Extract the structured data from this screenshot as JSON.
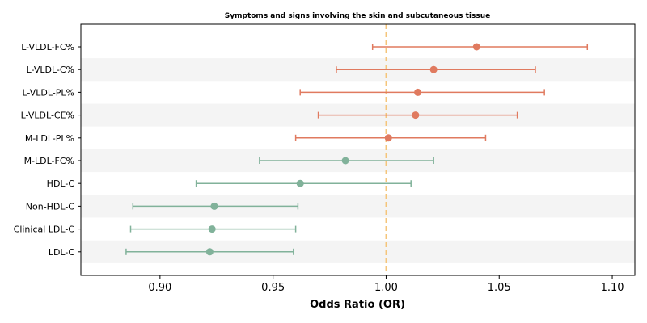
{
  "chart_data": {
    "type": "forest",
    "title": "Symptoms and signs involving the skin and subcutaneous tissue",
    "xlabel": "Odds Ratio (OR)",
    "xlim": [
      0.865,
      1.11
    ],
    "xticks": [
      0.9,
      0.95,
      1.0,
      1.05,
      1.1
    ],
    "xtick_labels": [
      "0.90",
      "0.95",
      "1.00",
      "1.05",
      "1.10"
    ],
    "reference_line": 1.0,
    "reference_color": "#f5c57a",
    "colors": {
      "above_one": "#e07a5f",
      "below_one": "#81b29a",
      "stripe": "#f4f4f4"
    },
    "rows": [
      {
        "label": "L-VLDL-FC%",
        "or": 1.04,
        "lower": 0.994,
        "upper": 1.089
      },
      {
        "label": "L-VLDL-C%",
        "or": 1.021,
        "lower": 0.978,
        "upper": 1.066
      },
      {
        "label": "L-VLDL-PL%",
        "or": 1.014,
        "lower": 0.962,
        "upper": 1.07
      },
      {
        "label": "L-VLDL-CE%",
        "or": 1.013,
        "lower": 0.97,
        "upper": 1.058
      },
      {
        "label": "M-LDL-PL%",
        "or": 1.001,
        "lower": 0.96,
        "upper": 1.044
      },
      {
        "label": "M-LDL-FC%",
        "or": 0.982,
        "lower": 0.944,
        "upper": 1.021
      },
      {
        "label": "HDL-C",
        "or": 0.962,
        "lower": 0.916,
        "upper": 1.011
      },
      {
        "label": "Non-HDL-C",
        "or": 0.924,
        "lower": 0.888,
        "upper": 0.961
      },
      {
        "label": "Clinical LDL-C",
        "or": 0.923,
        "lower": 0.887,
        "upper": 0.96
      },
      {
        "label": "LDL-C",
        "or": 0.922,
        "lower": 0.885,
        "upper": 0.959
      }
    ]
  }
}
